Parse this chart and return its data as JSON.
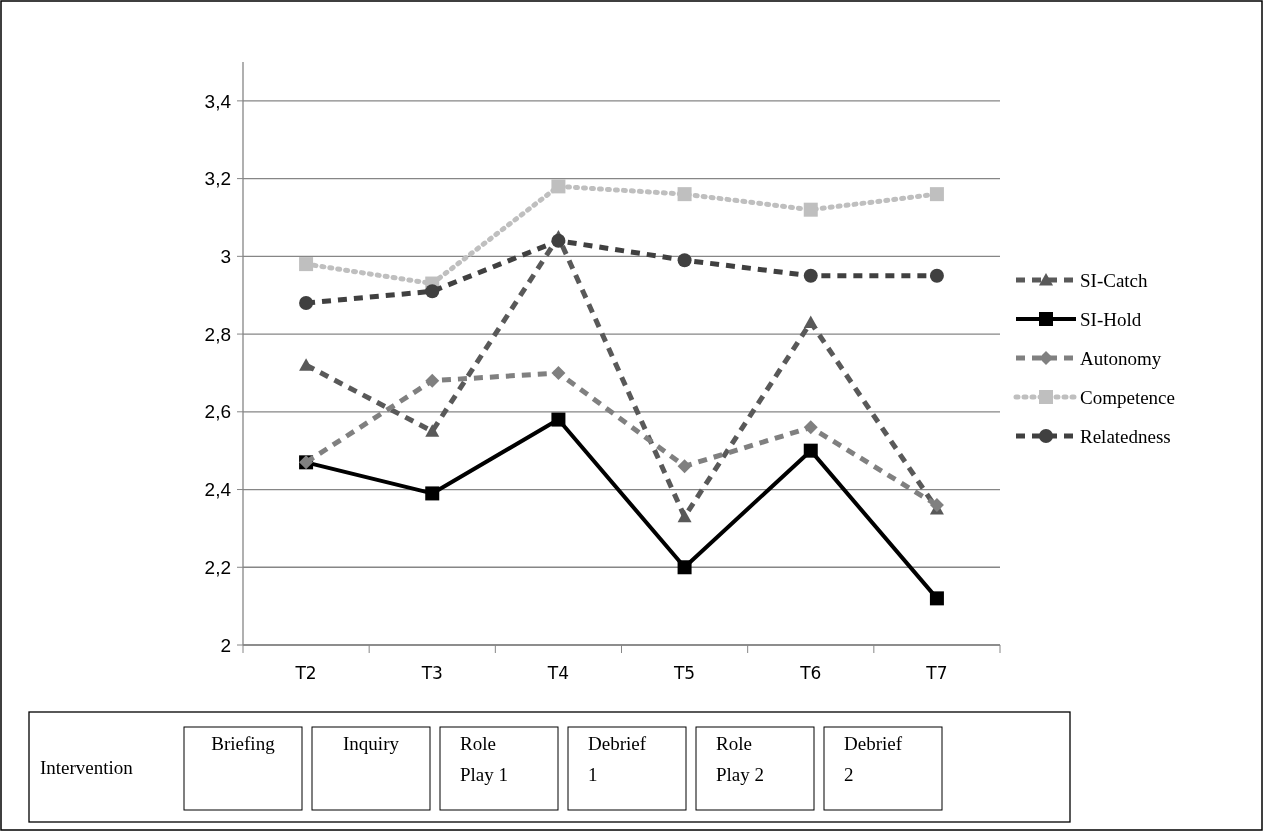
{
  "chart_data": {
    "type": "line",
    "categories": [
      "T2",
      "T3",
      "T4",
      "T5",
      "T6",
      "T7"
    ],
    "series": [
      {
        "name": "SI-Catch",
        "color": "#595959",
        "marker": "triangle",
        "line_style": "dashed",
        "values": [
          2.72,
          2.55,
          3.05,
          2.33,
          2.83,
          2.35
        ]
      },
      {
        "name": "SI-Hold",
        "color": "#000000",
        "marker": "square",
        "line_style": "solid",
        "values": [
          2.47,
          2.39,
          2.58,
          2.2,
          2.5,
          2.12
        ]
      },
      {
        "name": "Autonomy",
        "color": "#808080",
        "marker": "diamond",
        "line_style": "dashed",
        "values": [
          2.47,
          2.68,
          2.7,
          2.46,
          2.56,
          2.36
        ]
      },
      {
        "name": "Competence",
        "color": "#bfbfbf",
        "marker": "square",
        "line_style": "dotted",
        "values": [
          2.98,
          2.93,
          3.18,
          3.16,
          3.12,
          3.16
        ]
      },
      {
        "name": "Relatedness",
        "color": "#404040",
        "marker": "circle",
        "line_style": "dashed",
        "values": [
          2.88,
          2.91,
          3.04,
          2.99,
          2.95,
          2.95
        ]
      }
    ],
    "ylim": [
      2,
      3.5
    ],
    "yticks": [
      2,
      {
        "value": 2.2,
        "label": "2,2"
      },
      {
        "value": 2.4,
        "label": "2,4"
      },
      {
        "value": 2.6,
        "label": "2,6"
      },
      {
        "value": 2.8,
        "label": "2,8"
      },
      3,
      {
        "value": 3.2,
        "label": "3,2"
      },
      {
        "value": 3.4,
        "label": "3,4"
      }
    ],
    "grid": "y",
    "legend": "right",
    "annotations": [
      "Intervention",
      "Briefing",
      "Inquiry",
      "Role Play 1",
      "Debrief 1",
      "Role Play 2",
      "Debrief 2"
    ]
  }
}
